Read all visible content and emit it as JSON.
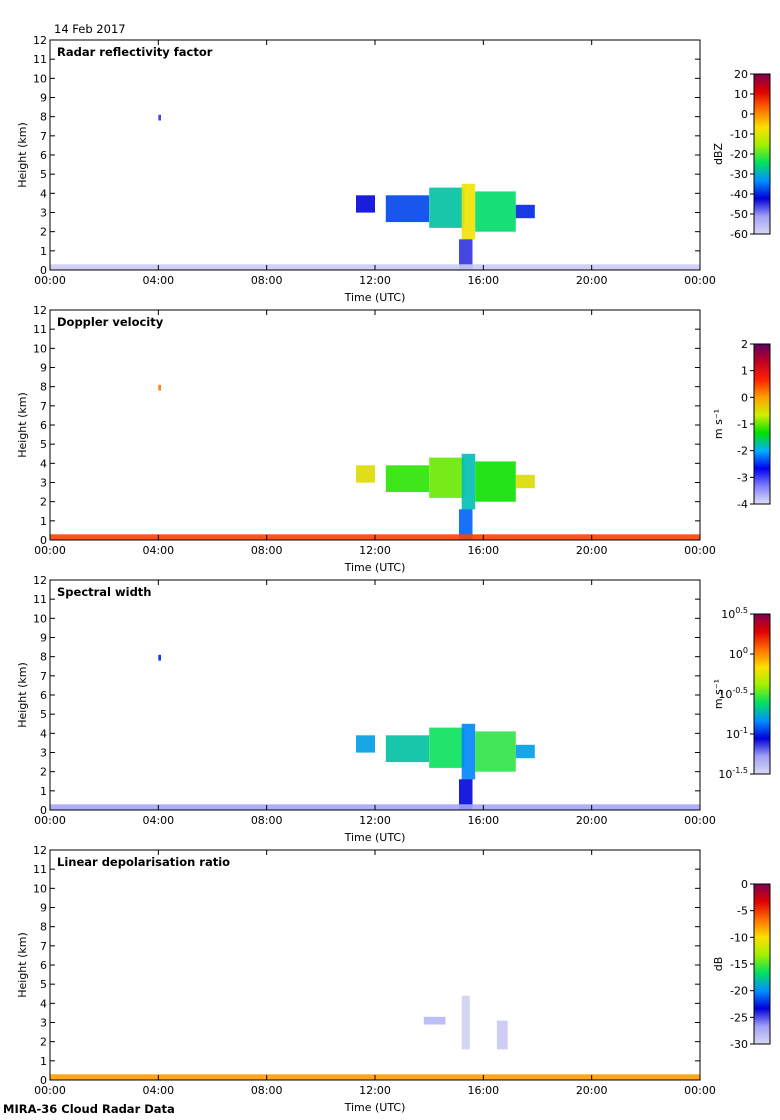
{
  "date_label": "14 Feb 2017",
  "footer": "MIRA-36 Cloud Radar Data",
  "chart_data": [
    {
      "type": "heatmap",
      "title": "Radar reflectivity factor",
      "xlabel": "Time (UTC)",
      "ylabel": "Height (km)",
      "x_tick_labels": [
        "00:00",
        "04:00",
        "08:00",
        "12:00",
        "16:00",
        "20:00",
        "00:00"
      ],
      "x_range_hours": [
        0,
        24
      ],
      "y_tick_labels": [
        "0",
        "1",
        "2",
        "3",
        "4",
        "5",
        "6",
        "7",
        "8",
        "9",
        "10",
        "11",
        "12"
      ],
      "ylim": [
        0,
        12
      ],
      "colorbar": {
        "unit": "dBZ",
        "range": [
          -60,
          20
        ],
        "tick_labels": [
          "20",
          "10",
          "0",
          "-10",
          "-20",
          "-30",
          "-40",
          "-50",
          "-60"
        ],
        "palette": "reflectivity"
      },
      "features": [
        {
          "t": [
            4.0,
            4.1
          ],
          "h": [
            7.8,
            8.1
          ],
          "value": -45
        },
        {
          "t": [
            11.3,
            12.0
          ],
          "h": [
            3.0,
            3.9
          ],
          "value": -42
        },
        {
          "t": [
            12.4,
            14.0
          ],
          "h": [
            2.5,
            3.9
          ],
          "value": -38
        },
        {
          "t": [
            14.0,
            15.3
          ],
          "h": [
            2.2,
            4.3
          ],
          "value": -28
        },
        {
          "t": [
            15.2,
            15.7
          ],
          "h": [
            1.6,
            4.5
          ],
          "value": -8
        },
        {
          "t": [
            15.7,
            17.2
          ],
          "h": [
            2.0,
            4.1
          ],
          "value": -25
        },
        {
          "t": [
            17.2,
            17.9
          ],
          "h": [
            2.7,
            3.4
          ],
          "value": -40
        },
        {
          "t": [
            15.1,
            15.6
          ],
          "h": [
            0.0,
            1.6
          ],
          "value": -45
        },
        {
          "t": [
            0.0,
            24.0
          ],
          "h": [
            0.0,
            0.3
          ],
          "value": -58
        }
      ]
    },
    {
      "type": "heatmap",
      "title": "Doppler velocity",
      "xlabel": "Time (UTC)",
      "ylabel": "Height (km)",
      "x_tick_labels": [
        "00:00",
        "04:00",
        "08:00",
        "12:00",
        "16:00",
        "20:00",
        "00:00"
      ],
      "x_range_hours": [
        0,
        24
      ],
      "y_tick_labels": [
        "0",
        "1",
        "2",
        "3",
        "4",
        "5",
        "6",
        "7",
        "8",
        "9",
        "10",
        "11",
        "12"
      ],
      "ylim": [
        0,
        12
      ],
      "colorbar": {
        "unit": "m s⁻¹",
        "range": [
          -4,
          2
        ],
        "tick_labels": [
          "2",
          "1",
          "0",
          "-1",
          "-2",
          "-3",
          "-4"
        ],
        "palette": "velocity"
      },
      "features": [
        {
          "t": [
            4.0,
            4.1
          ],
          "h": [
            7.8,
            8.1
          ],
          "value": 0.2
        },
        {
          "t": [
            11.3,
            12.0
          ],
          "h": [
            3.0,
            3.9
          ],
          "value": -0.5
        },
        {
          "t": [
            12.4,
            14.0
          ],
          "h": [
            2.5,
            3.9
          ],
          "value": -1.2
        },
        {
          "t": [
            14.0,
            15.3
          ],
          "h": [
            2.2,
            4.3
          ],
          "value": -1.0
        },
        {
          "t": [
            15.2,
            15.7
          ],
          "h": [
            1.6,
            4.5
          ],
          "value": -1.8
        },
        {
          "t": [
            15.7,
            17.2
          ],
          "h": [
            2.0,
            4.1
          ],
          "value": -1.3
        },
        {
          "t": [
            17.2,
            17.9
          ],
          "h": [
            2.7,
            3.4
          ],
          "value": -0.5
        },
        {
          "t": [
            15.1,
            15.6
          ],
          "h": [
            0.0,
            1.6
          ],
          "value": -2.3
        },
        {
          "t": [
            0.0,
            24.0
          ],
          "h": [
            0.0,
            0.3
          ],
          "value": 0.5
        }
      ]
    },
    {
      "type": "heatmap",
      "title": "Spectral width",
      "xlabel": "Time (UTC)",
      "ylabel": "Height (km)",
      "x_tick_labels": [
        "00:00",
        "04:00",
        "08:00",
        "12:00",
        "16:00",
        "20:00",
        "00:00"
      ],
      "x_range_hours": [
        0,
        24
      ],
      "y_tick_labels": [
        "0",
        "1",
        "2",
        "3",
        "4",
        "5",
        "6",
        "7",
        "8",
        "9",
        "10",
        "11",
        "12"
      ],
      "ylim": [
        0,
        12
      ],
      "colorbar": {
        "unit": "m s⁻¹",
        "scale": "log10",
        "range": [
          -1.5,
          0.5
        ],
        "tick_labels": [
          "10^0.5",
          "10^0",
          "10^-0.5",
          "10^-1",
          "10^-1.5"
        ],
        "palette": "reflectivity"
      },
      "features": [
        {
          "t": [
            4.0,
            4.1
          ],
          "h": [
            7.8,
            8.1
          ],
          "value": -1.0
        },
        {
          "t": [
            11.3,
            12.0
          ],
          "h": [
            3.0,
            3.9
          ],
          "value": -0.8
        },
        {
          "t": [
            12.4,
            14.0
          ],
          "h": [
            2.5,
            3.9
          ],
          "value": -0.7
        },
        {
          "t": [
            14.0,
            15.3
          ],
          "h": [
            2.2,
            4.3
          ],
          "value": -0.6
        },
        {
          "t": [
            15.2,
            15.7
          ],
          "h": [
            1.6,
            4.5
          ],
          "value": -0.85
        },
        {
          "t": [
            15.7,
            17.2
          ],
          "h": [
            2.0,
            4.1
          ],
          "value": -0.55
        },
        {
          "t": [
            17.2,
            17.9
          ],
          "h": [
            2.7,
            3.4
          ],
          "value": -0.8
        },
        {
          "t": [
            15.1,
            15.6
          ],
          "h": [
            0.0,
            1.6
          ],
          "value": -1.05
        },
        {
          "t": [
            0.0,
            24.0
          ],
          "h": [
            0.0,
            0.3
          ],
          "value": -1.3
        }
      ]
    },
    {
      "type": "heatmap",
      "title": "Linear depolarisation ratio",
      "xlabel": "Time (UTC)",
      "ylabel": "Height (km)",
      "x_tick_labels": [
        "00:00",
        "04:00",
        "08:00",
        "12:00",
        "16:00",
        "20:00",
        "00:00"
      ],
      "x_range_hours": [
        0,
        24
      ],
      "y_tick_labels": [
        "0",
        "1",
        "2",
        "3",
        "4",
        "5",
        "6",
        "7",
        "8",
        "9",
        "10",
        "11",
        "12"
      ],
      "ylim": [
        0,
        12
      ],
      "colorbar": {
        "unit": "dB",
        "range": [
          -30,
          0
        ],
        "tick_labels": [
          "0",
          "-5",
          "-10",
          "-15",
          "-20",
          "-25",
          "-30"
        ],
        "palette": "reflectivity"
      },
      "features": [
        {
          "t": [
            13.8,
            14.6
          ],
          "h": [
            2.9,
            3.3
          ],
          "value": -28
        },
        {
          "t": [
            15.2,
            15.5
          ],
          "h": [
            1.6,
            4.4
          ],
          "value": -29.5
        },
        {
          "t": [
            16.5,
            16.9
          ],
          "h": [
            1.6,
            3.1
          ],
          "value": -29
        },
        {
          "t": [
            0.0,
            24.0
          ],
          "h": [
            0.0,
            0.3
          ],
          "value": -8
        }
      ]
    }
  ]
}
